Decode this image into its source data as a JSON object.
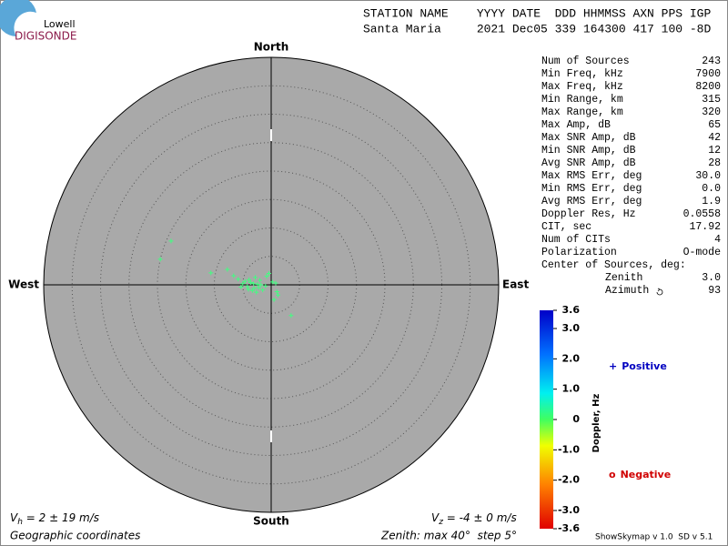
{
  "logo": {
    "line1": "Lowell",
    "line2": "DIGISONDE"
  },
  "header": {
    "labels": "STATION NAME    YYYY DATE  DDD HHMMSS AXN PPS IGP",
    "values": "Santa Maria     2021 Dec05 339 164300 417 100 -8D"
  },
  "stats": {
    "rows": [
      [
        "Num of Sources",
        "243"
      ],
      [
        "Min Freq, kHz",
        "7900"
      ],
      [
        "Max Freq, kHz",
        "8200"
      ],
      [
        "Min Range, km",
        "315"
      ],
      [
        "Max Range, km",
        "320"
      ],
      [
        "Max Amp, dB",
        "65"
      ],
      [
        "Max SNR Amp, dB",
        "42"
      ],
      [
        "Min SNR Amp, dB",
        "12"
      ],
      [
        "Avg SNR Amp, dB",
        "28"
      ],
      [
        "Max RMS Err, deg",
        "30.0"
      ],
      [
        "Min RMS Err, deg",
        "0.0"
      ],
      [
        "Avg RMS Err, deg",
        "1.9"
      ],
      [
        "Doppler Res, Hz",
        "0.0558"
      ],
      [
        "CIT, sec",
        "17.92"
      ],
      [
        "Num of CITs",
        "4"
      ],
      [
        "Polarization",
        "O-mode"
      ]
    ],
    "center_label": "Center of Sources, deg:",
    "center_rows": [
      [
        "Zenith",
        "3.0"
      ],
      [
        "Azimuth",
        "93"
      ]
    ]
  },
  "chart_data": {
    "type": "scatter",
    "directions": {
      "north": "North",
      "south": "South",
      "east": "East",
      "west": "West"
    },
    "x": [
      -17.6,
      -19.5,
      -10.6,
      -7.7,
      -6.6,
      -5.8,
      -5.0,
      3.5,
      1.2,
      0.8,
      -2.4,
      -3.0,
      -3.6,
      -4.2,
      -2.0,
      -1.5,
      -0.8,
      -2.8,
      -3.3,
      -4.6,
      -5.3,
      -1.0,
      0.2,
      -2.2,
      -3.9,
      -2.6,
      -1.8,
      -4.0,
      -3.1,
      0.5,
      1.0,
      -0.4
    ],
    "y": [
      7.7,
      4.5,
      2.1,
      2.7,
      1.6,
      1.0,
      0.2,
      -5.4,
      -1.8,
      0.3,
      0.1,
      -0.6,
      0.4,
      -0.3,
      0.8,
      -0.9,
      1.5,
      1.3,
      -1.0,
      0.6,
      -0.4,
      -0.2,
      0.5,
      -0.5,
      0.9,
      -1.3,
      0.0,
      -0.8,
      0.2,
      -2.6,
      -1.2,
      2.0
    ],
    "color": "#40ff80",
    "xlim": [
      -40,
      40
    ],
    "ylim": [
      -40,
      40
    ],
    "rings": [
      5,
      10,
      15,
      20,
      25,
      30,
      35
    ],
    "colorbar": {
      "title": "Doppler, Hz",
      "lim": [
        -3.6,
        3.6
      ],
      "ticks": [
        3.6,
        {
          "value": 3,
          "label": "3.0"
        },
        {
          "value": 2,
          "label": "2.0"
        },
        {
          "value": 1,
          "label": "1.0"
        },
        0,
        {
          "value": -1,
          "label": "-1.0"
        },
        {
          "value": -2,
          "label": "-2.0"
        },
        {
          "value": -3,
          "label": "-3.0"
        },
        -3.6
      ]
    },
    "legend": {
      "positive": {
        "symbol": "+",
        "label": "Positive",
        "color": "#0000c0"
      },
      "negative": {
        "symbol": "o",
        "label": "Negative",
        "color": "#d00000"
      }
    }
  },
  "footer": {
    "vh_v": "V",
    "vh_sub": "h",
    "vh_text": " = 2 ± 19 m/s",
    "vz_v": "V",
    "vz_sub": "z",
    "vz_text": " = -4 ± 0 m/s",
    "coords": "Geographic coordinates",
    "zenith": "Zenith: max 40°  step 5°",
    "version": "ShowSkymap v 1.0  SD v 5.1"
  }
}
